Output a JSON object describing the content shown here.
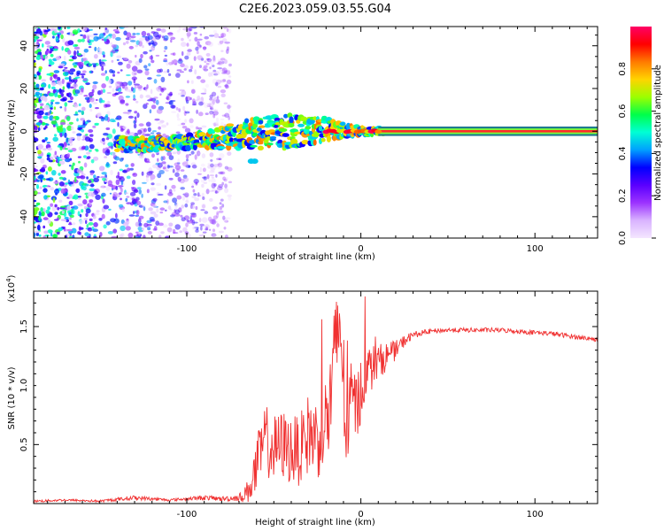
{
  "title": "C2E6.2023.059.03.55.G04",
  "chart_data": [
    {
      "type": "heatmap",
      "xlabel": "Height of straight line (km)",
      "ylabel": "Frequency (Hz)",
      "xlim": [
        -188,
        136
      ],
      "ylim": [
        -50,
        49
      ],
      "xticks": [
        -100,
        0,
        100
      ],
      "yticks": [
        -40,
        -20,
        0,
        20,
        40
      ],
      "colorbar": {
        "label": "Normalized spectral amplitude",
        "range": [
          0,
          1
        ],
        "ticks": [
          "0.0",
          "0.2",
          "0.4",
          "0.6",
          "0.8"
        ],
        "colormap": [
          "#f4e6ff",
          "#d9b3ff",
          "#9c33ff",
          "#5a00ff",
          "#0000ff",
          "#00a0ff",
          "#00ffd5",
          "#00ff4a",
          "#9cff00",
          "#ffd400",
          "#ff7a00",
          "#ff0000",
          "#ff0066"
        ]
      },
      "trace": {
        "description_points_x": [
          -135,
          -120,
          -100,
          -80,
          -60,
          -40,
          -20,
          0,
          12,
          136
        ],
        "center_hz": [
          -6,
          -6,
          -5,
          -3,
          -1,
          0,
          1,
          0,
          0,
          0
        ],
        "spread_hz": [
          3,
          3,
          3,
          5,
          7,
          8,
          5,
          2,
          1,
          0.5
        ]
      },
      "noise_region_x": [
        -188,
        -75
      ]
    },
    {
      "type": "line",
      "xlabel": "Height of straight line (km)",
      "ylabel": "SNR (10 * v/v)",
      "yscale_label": "(x10",
      "yscale_exp": "4",
      "yscale_close": ")",
      "xlim": [
        -188,
        136
      ],
      "ylim": [
        0,
        1.8
      ],
      "xticks": [
        -100,
        0,
        100
      ],
      "yticks": [
        "0.5",
        "1.0",
        "1.5"
      ],
      "series": [
        {
          "color": "#f03030",
          "x": [
            -188,
            -170,
            -150,
            -130,
            -110,
            -90,
            -80,
            -70,
            -65,
            -60,
            -55,
            -50,
            -45,
            -40,
            -35,
            -30,
            -25,
            -20,
            -18,
            -15,
            -12,
            -10,
            -8,
            -5,
            -2,
            0,
            3,
            6,
            10,
            15,
            20,
            25,
            30,
            40,
            50,
            60,
            70,
            80,
            90,
            100,
            110,
            120,
            130,
            136
          ],
          "y": [
            0.02,
            0.03,
            0.02,
            0.05,
            0.03,
            0.05,
            0.04,
            0.05,
            0.1,
            0.3,
            0.55,
            0.45,
            0.5,
            0.45,
            0.45,
            0.6,
            0.55,
            0.7,
            0.8,
            1.2,
            1.6,
            1.0,
            0.6,
            0.9,
            0.8,
            1.0,
            1.1,
            1.15,
            1.2,
            1.25,
            1.3,
            1.38,
            1.43,
            1.46,
            1.47,
            1.47,
            1.47,
            1.47,
            1.46,
            1.45,
            1.44,
            1.42,
            1.4,
            1.39
          ],
          "noise": [
            0.01,
            0.01,
            0.01,
            0.02,
            0.01,
            0.02,
            0.02,
            0.03,
            0.1,
            0.25,
            0.3,
            0.3,
            0.3,
            0.3,
            0.3,
            0.35,
            0.35,
            0.4,
            0.5,
            0.5,
            0.5,
            0.5,
            0.4,
            0.35,
            0.3,
            0.3,
            0.25,
            0.2,
            0.15,
            0.12,
            0.08,
            0.05,
            0.03,
            0.02,
            0.02,
            0.02,
            0.02,
            0.02,
            0.02,
            0.02,
            0.02,
            0.02,
            0.02,
            0.02
          ]
        }
      ]
    }
  ]
}
